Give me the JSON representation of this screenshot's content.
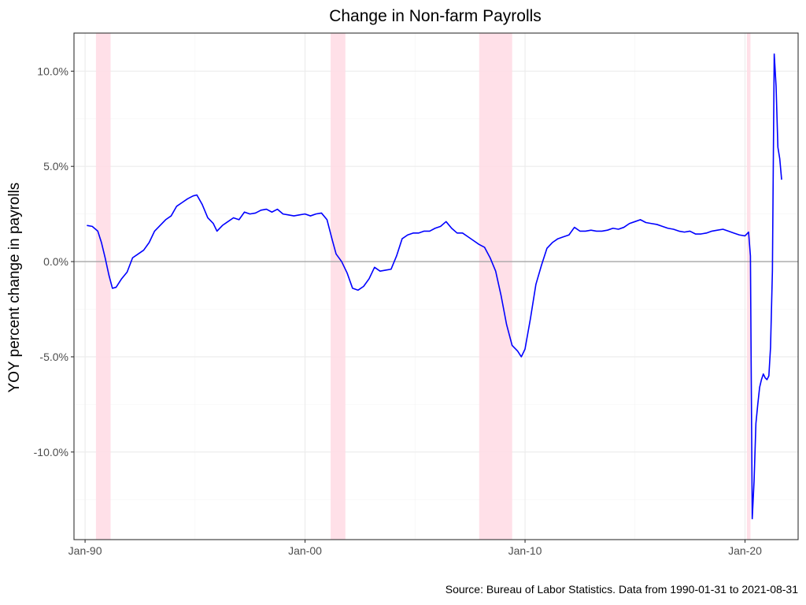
{
  "chart_data": {
    "type": "line",
    "title": "Change in Non-farm Payrolls",
    "xlabel": "",
    "ylabel": "YOY percent change in payrolls",
    "caption": "Source: Bureau of Labor Statistics. Data from 1990-01-31 to 2021-08-31",
    "xlim": [
      "1989-07-01",
      "2022-06-01"
    ],
    "ylim": [
      -14.6,
      12.0
    ],
    "x_ticks": [
      {
        "date": "1990-01-01",
        "label": "Jan-90"
      },
      {
        "date": "2000-01-01",
        "label": "Jan-00"
      },
      {
        "date": "2010-01-01",
        "label": "Jan-10"
      },
      {
        "date": "2020-01-01",
        "label": "Jan-20"
      }
    ],
    "y_ticks": [
      {
        "value": 10,
        "label": "10.0%"
      },
      {
        "value": 5,
        "label": "5.0%"
      },
      {
        "value": 0,
        "label": "0.0%"
      },
      {
        "value": -5,
        "label": "-5.0%"
      },
      {
        "value": -10,
        "label": "-10.0%"
      }
    ],
    "grid": true,
    "zero_line": 0,
    "recessions": [
      {
        "start": "1990-07-01",
        "end": "1991-03-01"
      },
      {
        "start": "2001-03-01",
        "end": "2001-11-01"
      },
      {
        "start": "2007-12-01",
        "end": "2009-06-01"
      },
      {
        "start": "2020-02-01",
        "end": "2020-04-01"
      }
    ],
    "colors": {
      "line": "#0000ff",
      "line_in_recession": "#7777ee",
      "recession_band": "#ffdde6",
      "zero_line": "#a6a6a6",
      "grid": "#ebebeb",
      "panel_border": "#333333"
    },
    "series": [
      {
        "points": [
          [
            "1990-01-31",
            1.9
          ],
          [
            "1990-04-30",
            1.85
          ],
          [
            "1990-07-31",
            1.6
          ],
          [
            "1990-09-30",
            1.0
          ],
          [
            "1990-11-30",
            0.2
          ],
          [
            "1991-01-31",
            -0.7
          ],
          [
            "1991-03-31",
            -1.4
          ],
          [
            "1991-05-31",
            -1.35
          ],
          [
            "1991-08-31",
            -0.9
          ],
          [
            "1991-11-30",
            -0.55
          ],
          [
            "1992-02-29",
            0.2
          ],
          [
            "1992-05-31",
            0.4
          ],
          [
            "1992-08-31",
            0.6
          ],
          [
            "1992-11-30",
            1.0
          ],
          [
            "1993-02-28",
            1.6
          ],
          [
            "1993-05-31",
            1.9
          ],
          [
            "1993-08-31",
            2.2
          ],
          [
            "1993-11-30",
            2.4
          ],
          [
            "1994-02-28",
            2.9
          ],
          [
            "1994-05-31",
            3.1
          ],
          [
            "1994-08-31",
            3.3
          ],
          [
            "1994-11-30",
            3.45
          ],
          [
            "1995-01-31",
            3.5
          ],
          [
            "1995-04-30",
            3.0
          ],
          [
            "1995-07-31",
            2.3
          ],
          [
            "1995-10-31",
            2.0
          ],
          [
            "1995-12-31",
            1.6
          ],
          [
            "1996-03-31",
            1.9
          ],
          [
            "1996-06-30",
            2.1
          ],
          [
            "1996-09-30",
            2.3
          ],
          [
            "1996-12-31",
            2.2
          ],
          [
            "1997-03-31",
            2.6
          ],
          [
            "1997-06-30",
            2.5
          ],
          [
            "1997-09-30",
            2.55
          ],
          [
            "1997-12-31",
            2.7
          ],
          [
            "1998-03-31",
            2.75
          ],
          [
            "1998-06-30",
            2.6
          ],
          [
            "1998-09-30",
            2.75
          ],
          [
            "1998-12-31",
            2.5
          ],
          [
            "1999-03-31",
            2.45
          ],
          [
            "1999-06-30",
            2.4
          ],
          [
            "1999-09-30",
            2.45
          ],
          [
            "1999-12-31",
            2.5
          ],
          [
            "2000-03-31",
            2.4
          ],
          [
            "2000-06-30",
            2.5
          ],
          [
            "2000-09-30",
            2.55
          ],
          [
            "2000-12-31",
            2.2
          ],
          [
            "2001-03-31",
            1.1
          ],
          [
            "2001-05-31",
            0.4
          ],
          [
            "2001-08-31",
            0.0
          ],
          [
            "2001-11-30",
            -0.6
          ],
          [
            "2002-02-28",
            -1.4
          ],
          [
            "2002-05-31",
            -1.5
          ],
          [
            "2002-08-31",
            -1.3
          ],
          [
            "2002-11-30",
            -0.9
          ],
          [
            "2003-02-28",
            -0.3
          ],
          [
            "2003-05-31",
            -0.5
          ],
          [
            "2003-08-31",
            -0.45
          ],
          [
            "2003-11-30",
            -0.4
          ],
          [
            "2004-02-29",
            0.3
          ],
          [
            "2004-05-31",
            1.2
          ],
          [
            "2004-08-31",
            1.4
          ],
          [
            "2004-11-30",
            1.5
          ],
          [
            "2005-02-28",
            1.5
          ],
          [
            "2005-05-31",
            1.6
          ],
          [
            "2005-08-31",
            1.6
          ],
          [
            "2005-11-30",
            1.75
          ],
          [
            "2006-02-28",
            1.85
          ],
          [
            "2006-05-31",
            2.1
          ],
          [
            "2006-08-31",
            1.75
          ],
          [
            "2006-11-30",
            1.5
          ],
          [
            "2007-02-28",
            1.5
          ],
          [
            "2007-05-31",
            1.3
          ],
          [
            "2007-08-31",
            1.1
          ],
          [
            "2007-11-30",
            0.9
          ],
          [
            "2008-02-29",
            0.75
          ],
          [
            "2008-05-31",
            0.2
          ],
          [
            "2008-08-31",
            -0.5
          ],
          [
            "2008-11-30",
            -1.8
          ],
          [
            "2009-02-28",
            -3.3
          ],
          [
            "2009-05-31",
            -4.4
          ],
          [
            "2009-08-31",
            -4.7
          ],
          [
            "2009-10-31",
            -5.0
          ],
          [
            "2009-12-31",
            -4.6
          ],
          [
            "2010-03-31",
            -3.0
          ],
          [
            "2010-06-30",
            -1.2
          ],
          [
            "2010-09-30",
            -0.2
          ],
          [
            "2010-12-31",
            0.7
          ],
          [
            "2011-03-31",
            1.0
          ],
          [
            "2011-06-30",
            1.2
          ],
          [
            "2011-09-30",
            1.3
          ],
          [
            "2011-12-31",
            1.4
          ],
          [
            "2012-03-31",
            1.8
          ],
          [
            "2012-06-30",
            1.6
          ],
          [
            "2012-09-30",
            1.6
          ],
          [
            "2012-12-31",
            1.65
          ],
          [
            "2013-03-31",
            1.6
          ],
          [
            "2013-06-30",
            1.6
          ],
          [
            "2013-09-30",
            1.65
          ],
          [
            "2013-12-31",
            1.75
          ],
          [
            "2014-03-31",
            1.7
          ],
          [
            "2014-06-30",
            1.8
          ],
          [
            "2014-09-30",
            2.0
          ],
          [
            "2014-12-31",
            2.1
          ],
          [
            "2015-03-31",
            2.2
          ],
          [
            "2015-06-30",
            2.05
          ],
          [
            "2015-09-30",
            2.0
          ],
          [
            "2015-12-31",
            1.95
          ],
          [
            "2016-03-31",
            1.85
          ],
          [
            "2016-06-30",
            1.75
          ],
          [
            "2016-09-30",
            1.7
          ],
          [
            "2016-12-31",
            1.6
          ],
          [
            "2017-03-31",
            1.55
          ],
          [
            "2017-06-30",
            1.6
          ],
          [
            "2017-09-30",
            1.45
          ],
          [
            "2017-12-31",
            1.45
          ],
          [
            "2018-03-31",
            1.5
          ],
          [
            "2018-06-30",
            1.6
          ],
          [
            "2018-09-30",
            1.65
          ],
          [
            "2018-12-31",
            1.7
          ],
          [
            "2019-03-31",
            1.6
          ],
          [
            "2019-06-30",
            1.5
          ],
          [
            "2019-09-30",
            1.4
          ],
          [
            "2019-12-31",
            1.35
          ],
          [
            "2020-01-31",
            1.45
          ],
          [
            "2020-02-29",
            1.55
          ],
          [
            "2020-03-31",
            0.3
          ],
          [
            "2020-04-30",
            -13.5
          ],
          [
            "2020-05-31",
            -11.5
          ],
          [
            "2020-06-30",
            -8.5
          ],
          [
            "2020-07-31",
            -7.5
          ],
          [
            "2020-08-31",
            -6.6
          ],
          [
            "2020-09-30",
            -6.2
          ],
          [
            "2020-10-31",
            -5.9
          ],
          [
            "2020-11-30",
            -6.1
          ],
          [
            "2020-12-31",
            -6.2
          ],
          [
            "2021-01-31",
            -6.0
          ],
          [
            "2021-02-28",
            -4.5
          ],
          [
            "2021-03-31",
            -0.5
          ],
          [
            "2021-04-30",
            10.9
          ],
          [
            "2021-05-31",
            9.2
          ],
          [
            "2021-06-30",
            6.0
          ],
          [
            "2021-07-31",
            5.4
          ],
          [
            "2021-08-31",
            4.3
          ]
        ]
      }
    ]
  }
}
